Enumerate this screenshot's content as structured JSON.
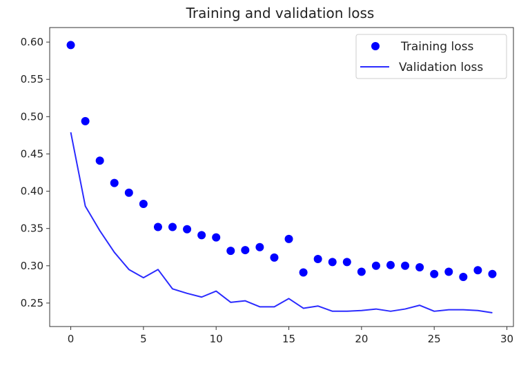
{
  "chart_data": {
    "type": "line",
    "title": "Training and validation loss",
    "xlabel": "",
    "ylabel": "",
    "xlim": [
      -1.45,
      30.45
    ],
    "ylim": [
      0.2185,
      0.6195
    ],
    "xticks": [
      0,
      5,
      10,
      15,
      20,
      25,
      30
    ],
    "yticks": [
      0.25,
      0.3,
      0.35,
      0.4,
      0.45,
      0.5,
      0.55,
      0.6
    ],
    "grid": false,
    "legend_position": "top-right",
    "colors": {
      "training": "#0000ff",
      "validation": "#2a2aff",
      "axes": "#333333"
    },
    "series": [
      {
        "name": "Training loss",
        "style": "markers",
        "x": [
          0,
          1,
          2,
          3,
          4,
          5,
          6,
          7,
          8,
          9,
          10,
          11,
          12,
          13,
          14,
          15,
          16,
          17,
          18,
          19,
          20,
          21,
          22,
          23,
          24,
          25,
          26,
          27,
          28,
          29
        ],
        "values": [
          0.596,
          0.494,
          0.441,
          0.411,
          0.398,
          0.383,
          0.352,
          0.352,
          0.349,
          0.341,
          0.338,
          0.32,
          0.321,
          0.325,
          0.311,
          0.336,
          0.291,
          0.309,
          0.305,
          0.305,
          0.292,
          0.3,
          0.301,
          0.3,
          0.298,
          0.289,
          0.292,
          0.285,
          0.294,
          0.289
        ]
      },
      {
        "name": "Validation loss",
        "style": "line",
        "x": [
          0,
          1,
          2,
          3,
          4,
          5,
          6,
          7,
          8,
          9,
          10,
          11,
          12,
          13,
          14,
          15,
          16,
          17,
          18,
          19,
          20,
          21,
          22,
          23,
          24,
          25,
          26,
          27,
          28,
          29
        ],
        "values": [
          0.479,
          0.38,
          0.347,
          0.318,
          0.295,
          0.284,
          0.295,
          0.269,
          0.263,
          0.258,
          0.266,
          0.251,
          0.253,
          0.245,
          0.245,
          0.256,
          0.243,
          0.246,
          0.239,
          0.239,
          0.24,
          0.242,
          0.239,
          0.242,
          0.247,
          0.239,
          0.241,
          0.241,
          0.24,
          0.237
        ]
      }
    ]
  }
}
